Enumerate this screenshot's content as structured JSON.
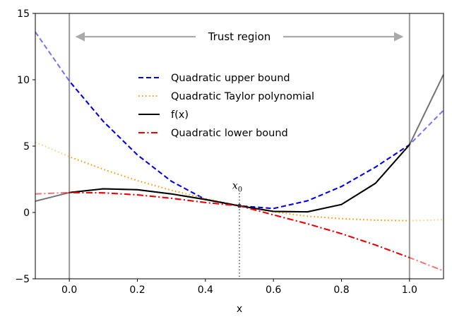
{
  "chart_data": {
    "type": "line",
    "title": "",
    "xlabel": "x",
    "ylabel": "",
    "xlim": [
      -0.1,
      1.1
    ],
    "ylim": [
      -5,
      15
    ],
    "x_ticks": [
      0.0,
      0.2,
      0.4,
      0.6,
      0.8,
      1.0
    ],
    "x_tick_labels": [
      "0.0",
      "0.2",
      "0.4",
      "0.6",
      "0.8",
      "1.0"
    ],
    "y_ticks": [
      -5,
      0,
      5,
      10,
      15
    ],
    "y_tick_labels": [
      "−5",
      "0",
      "5",
      "10",
      "15"
    ],
    "grid": false,
    "legend_position": "upper-center",
    "expansion_point": {
      "label": "x",
      "subscript": "0",
      "x": 0.5,
      "y": 0.5
    },
    "trust_region": {
      "label": "Trust region",
      "from": 0.0,
      "to": 1.0
    },
    "series": [
      {
        "name": "Quadratic upper bound",
        "style": "dashed",
        "color": "#0000ee",
        "points": [
          [
            -0.1,
            13.6
          ],
          [
            0.0,
            9.9
          ],
          [
            0.1,
            6.86
          ],
          [
            0.2,
            4.34
          ],
          [
            0.3,
            2.35
          ],
          [
            0.4,
            0.98
          ],
          [
            0.5,
            0.5
          ],
          [
            0.6,
            0.3
          ],
          [
            0.7,
            0.88
          ],
          [
            0.8,
            1.96
          ],
          [
            0.9,
            3.42
          ],
          [
            1.0,
            5.1
          ],
          [
            1.1,
            7.7
          ]
        ]
      },
      {
        "name": "Quadratic Taylor polynomial",
        "style": "dotted",
        "color": "#ff9900",
        "points": [
          [
            -0.1,
            5.3
          ],
          [
            0.0,
            4.2
          ],
          [
            0.1,
            3.25
          ],
          [
            0.2,
            2.4
          ],
          [
            0.3,
            1.67
          ],
          [
            0.4,
            1.05
          ],
          [
            0.5,
            0.5
          ],
          [
            0.6,
            0.05
          ],
          [
            0.7,
            -0.28
          ],
          [
            0.8,
            -0.47
          ],
          [
            0.9,
            -0.58
          ],
          [
            1.0,
            -0.62
          ],
          [
            1.1,
            -0.55
          ]
        ]
      },
      {
        "name": "f(x)",
        "style": "solid",
        "color": "#000000",
        "points": [
          [
            -0.1,
            0.85
          ],
          [
            0.0,
            1.5
          ],
          [
            0.1,
            1.78
          ],
          [
            0.2,
            1.72
          ],
          [
            0.3,
            1.4
          ],
          [
            0.4,
            0.98
          ],
          [
            0.5,
            0.5
          ],
          [
            0.6,
            0.08
          ],
          [
            0.7,
            0.05
          ],
          [
            0.8,
            0.6
          ],
          [
            0.9,
            2.2
          ],
          [
            1.0,
            5.1
          ],
          [
            1.1,
            10.4
          ]
        ]
      },
      {
        "name": "Quadratic lower bound",
        "style": "dashdot",
        "color": "#ee0000",
        "points": [
          [
            -0.1,
            1.4
          ],
          [
            0.0,
            1.5
          ],
          [
            0.1,
            1.48
          ],
          [
            0.2,
            1.33
          ],
          [
            0.3,
            1.07
          ],
          [
            0.4,
            0.75
          ],
          [
            0.5,
            0.5
          ],
          [
            0.6,
            -0.18
          ],
          [
            0.7,
            -0.85
          ],
          [
            0.8,
            -1.6
          ],
          [
            0.9,
            -2.45
          ],
          [
            1.0,
            -3.4
          ],
          [
            1.1,
            -4.4
          ]
        ]
      }
    ]
  }
}
